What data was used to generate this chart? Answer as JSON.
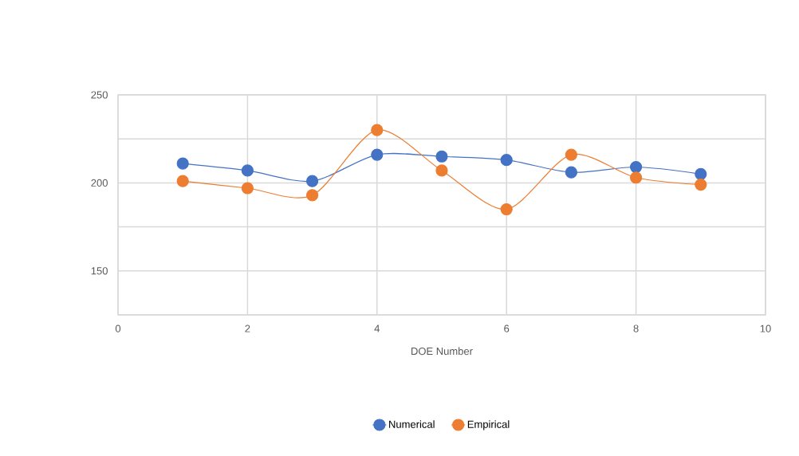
{
  "chart_data": {
    "type": "line",
    "xlabel": "DOE Number",
    "x": [
      1,
      2,
      3,
      4,
      5,
      6,
      7,
      8,
      9
    ],
    "series": [
      {
        "name": "Numerical",
        "color": "#4472c4",
        "values": [
          211,
          207,
          201,
          216,
          215,
          213,
          206,
          209,
          205
        ]
      },
      {
        "name": "Empirical",
        "color": "#ed7d31",
        "values": [
          201,
          197,
          193,
          230,
          207,
          185,
          216,
          203,
          199
        ]
      }
    ],
    "xlim": [
      0,
      10
    ],
    "xticks": [
      0,
      2,
      4,
      6,
      8,
      10
    ],
    "ylim": [
      125,
      250
    ],
    "yticks": [
      {
        "value": 125,
        "label": null
      },
      150,
      {
        "value": 175,
        "label": null
      },
      200,
      {
        "value": 225,
        "label": null
      },
      250
    ],
    "grid": true,
    "legend": "bottom",
    "marker": "circle",
    "line_style": "solid"
  }
}
